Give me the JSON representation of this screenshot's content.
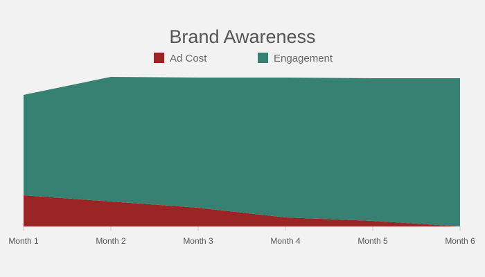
{
  "chart_data": {
    "type": "area",
    "stacked": true,
    "title": "Brand Awareness",
    "categories": [
      "Month 1",
      "Month 2",
      "Month 3",
      "Month 4",
      "Month 5",
      "Month 6"
    ],
    "series": [
      {
        "name": "Ad Cost",
        "color": "#9b2424",
        "values": [
          45,
          36,
          27,
          13,
          8,
          0
        ]
      },
      {
        "name": "Engagement",
        "color": "#368172",
        "values": [
          145,
          180,
          188,
          202,
          206,
          214
        ]
      }
    ],
    "ylim": [
      0,
      214
    ],
    "grid": false,
    "legend": "top-center"
  }
}
